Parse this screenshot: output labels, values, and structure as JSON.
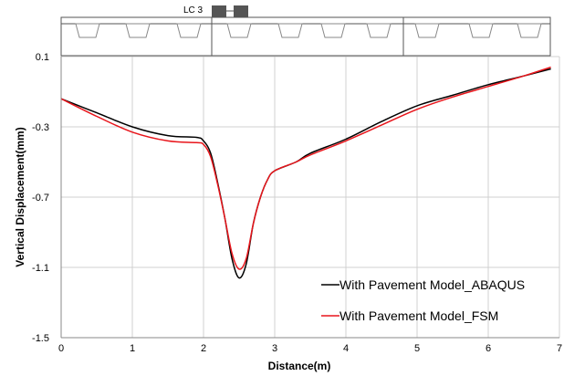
{
  "chart_data": {
    "type": "line",
    "title": "",
    "xlabel": "Distance(m)",
    "ylabel": "Vertical Displacement(mm)",
    "xlim": [
      0,
      7
    ],
    "ylim": [
      -1.5,
      0.1
    ],
    "xticks": [
      "0",
      "1",
      "2",
      "3",
      "4",
      "5",
      "6",
      "7"
    ],
    "yticks": [
      "0.1",
      "-0.3",
      "-0.7",
      "-1.1",
      "-1.5"
    ],
    "grid": true,
    "legend_position": "bottom-right",
    "load_case_label": "LC 3",
    "series": [
      {
        "name": "With Pavement Model_ABAQUS",
        "color": "#000000",
        "points": [
          [
            0,
            -0.14
          ],
          [
            0.5,
            -0.22
          ],
          [
            1.0,
            -0.3
          ],
          [
            1.5,
            -0.35
          ],
          [
            1.9,
            -0.36
          ],
          [
            2.0,
            -0.38
          ],
          [
            2.1,
            -0.45
          ],
          [
            2.2,
            -0.62
          ],
          [
            2.3,
            -0.82
          ],
          [
            2.4,
            -1.05
          ],
          [
            2.5,
            -1.16
          ],
          [
            2.6,
            -1.08
          ],
          [
            2.7,
            -0.85
          ],
          [
            2.8,
            -0.7
          ],
          [
            2.9,
            -0.6
          ],
          [
            3.0,
            -0.55
          ],
          [
            3.3,
            -0.5
          ],
          [
            3.5,
            -0.45
          ],
          [
            4.0,
            -0.37
          ],
          [
            4.5,
            -0.27
          ],
          [
            5.0,
            -0.18
          ],
          [
            5.5,
            -0.12
          ],
          [
            6.0,
            -0.06
          ],
          [
            6.5,
            -0.01
          ],
          [
            6.88,
            0.03
          ]
        ]
      },
      {
        "name": "With Pavement Model_FSM",
        "color": "#e8151b",
        "points": [
          [
            0,
            -0.14
          ],
          [
            0.5,
            -0.24
          ],
          [
            1.0,
            -0.33
          ],
          [
            1.5,
            -0.38
          ],
          [
            1.9,
            -0.39
          ],
          [
            2.0,
            -0.4
          ],
          [
            2.1,
            -0.47
          ],
          [
            2.2,
            -0.63
          ],
          [
            2.3,
            -0.82
          ],
          [
            2.4,
            -1.02
          ],
          [
            2.5,
            -1.11
          ],
          [
            2.6,
            -1.05
          ],
          [
            2.7,
            -0.85
          ],
          [
            2.8,
            -0.7
          ],
          [
            2.9,
            -0.6
          ],
          [
            3.0,
            -0.55
          ],
          [
            3.3,
            -0.5
          ],
          [
            3.5,
            -0.46
          ],
          [
            4.0,
            -0.38
          ],
          [
            4.5,
            -0.29
          ],
          [
            5.0,
            -0.2
          ],
          [
            5.5,
            -0.13
          ],
          [
            6.0,
            -0.07
          ],
          [
            6.5,
            -0.01
          ],
          [
            6.88,
            0.04
          ]
        ]
      }
    ]
  },
  "colors": {
    "grid": "#d0d0d0",
    "axis": "#888888",
    "tire": "#555555"
  }
}
